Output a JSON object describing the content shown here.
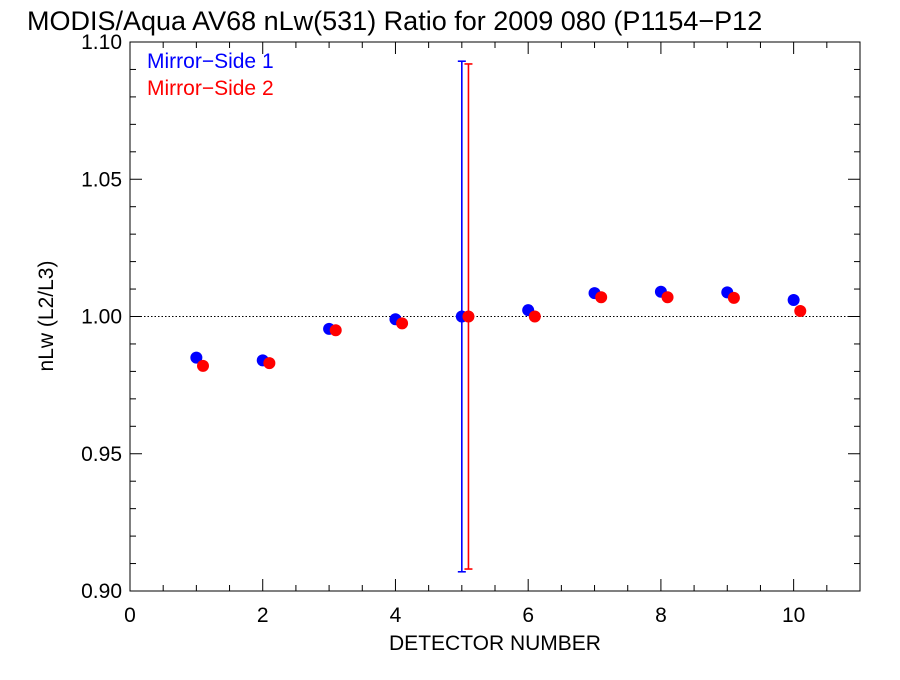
{
  "chart_data": {
    "type": "scatter",
    "title": "MODIS/Aqua AV68 nLw(531) Ratio for 2009 080 (P1154−P12",
    "xlabel": "DETECTOR NUMBER",
    "ylabel": "nLw (L2/L3)",
    "xlim": [
      0,
      11
    ],
    "ylim": [
      0.9,
      1.1
    ],
    "x_ticks": [
      0,
      2,
      4,
      6,
      8,
      10
    ],
    "x_tick_labels": [
      "0",
      "2",
      "4",
      "6",
      "8",
      "10"
    ],
    "y_ticks": [
      0.9,
      0.95,
      1.0,
      1.05,
      1.1
    ],
    "y_tick_labels": [
      "0.90",
      "0.95",
      "1.00",
      "1.05",
      "1.10"
    ],
    "reference_line": {
      "y": 1.0,
      "style": "dotted"
    },
    "legend_position": "top-left",
    "series": [
      {
        "name": "Mirror−Side 1",
        "color": "#0000ff",
        "x": [
          1,
          2,
          3,
          4,
          5,
          6,
          7,
          8,
          9,
          10
        ],
        "y": [
          0.985,
          0.984,
          0.9955,
          0.999,
          1.0,
          1.0023,
          1.0085,
          1.009,
          1.0088,
          1.006
        ],
        "error_bar": {
          "x": 5,
          "low": 0.907,
          "high": 1.093
        }
      },
      {
        "name": "Mirror−Side 2",
        "color": "#ff0000",
        "x": [
          1.1,
          2.1,
          3.1,
          4.1,
          5.1,
          6.1,
          7.1,
          8.1,
          9.1,
          10.1
        ],
        "y": [
          0.982,
          0.983,
          0.995,
          0.9975,
          1.0,
          1.0,
          1.007,
          1.007,
          1.0068,
          1.002
        ],
        "error_bar": {
          "x": 5.1,
          "low": 0.908,
          "high": 1.092
        }
      }
    ]
  }
}
